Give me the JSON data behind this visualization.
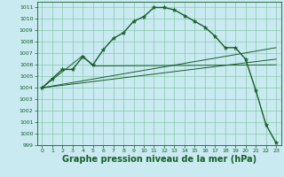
{
  "background_color": "#c8eaf0",
  "grid_color": "#7abf9a",
  "line_color": "#1a5c2a",
  "xlabel": "Graphe pression niveau de la mer (hPa)",
  "xlabel_fontsize": 7,
  "ylim": [
    999,
    1011.5
  ],
  "xlim": [
    -0.5,
    23.5
  ],
  "yticks": [
    999,
    1000,
    1001,
    1002,
    1003,
    1004,
    1005,
    1006,
    1007,
    1008,
    1009,
    1010,
    1011
  ],
  "xticks": [
    0,
    1,
    2,
    3,
    4,
    5,
    6,
    7,
    8,
    9,
    10,
    11,
    12,
    13,
    14,
    15,
    16,
    17,
    18,
    19,
    20,
    21,
    22,
    23
  ],
  "series_main": {
    "x": [
      0,
      1,
      2,
      3,
      4,
      5,
      6,
      7,
      8,
      9,
      10,
      11,
      12,
      13,
      14,
      15,
      16,
      17,
      18,
      19,
      20,
      21,
      22,
      23
    ],
    "y": [
      1004.0,
      1004.8,
      1005.6,
      1005.6,
      1006.7,
      1006.0,
      1007.3,
      1008.3,
      1008.8,
      1009.8,
      1010.2,
      1011.0,
      1011.0,
      1010.8,
      1010.3,
      1009.8,
      1009.3,
      1008.5,
      1007.5,
      1007.5,
      1006.5,
      1003.8,
      1000.8,
      999.2
    ],
    "linewidth": 1.0,
    "markersize": 3.5
  },
  "series_lines": [
    {
      "x": [
        0,
        23
      ],
      "y": [
        1004.0,
        1007.5
      ],
      "linewidth": 0.7
    },
    {
      "x": [
        0,
        23
      ],
      "y": [
        1004.0,
        1006.5
      ],
      "linewidth": 0.7
    },
    {
      "x": [
        0,
        4,
        5,
        23
      ],
      "y": [
        1004.0,
        1006.8,
        1005.9,
        1006.0
      ],
      "linewidth": 0.7
    }
  ]
}
